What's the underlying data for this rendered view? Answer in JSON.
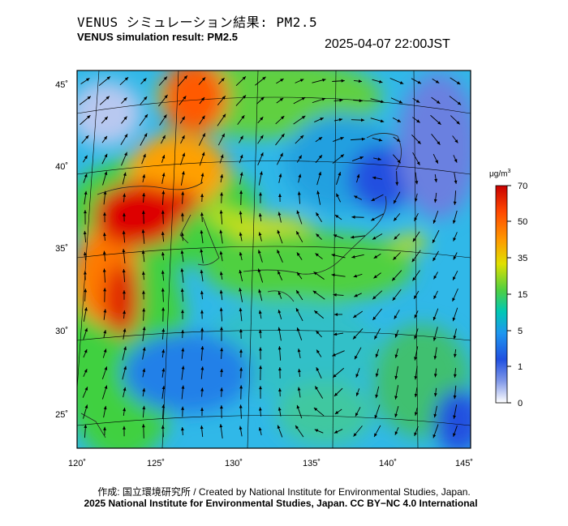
{
  "title_jp": "VENUS シミュレーション結果: PM2.5",
  "title_en": "VENUS simulation result: PM2.5",
  "timestamp": "2025-04-07 22:00JST",
  "map": {
    "lon_range": [
      120,
      145
    ],
    "lat_range": [
      23,
      46
    ],
    "lon_ticks": [
      "120˚",
      "125˚",
      "130˚",
      "135˚",
      "140˚",
      "145˚"
    ],
    "lat_ticks": [
      "45˚",
      "40˚",
      "35˚",
      "30˚",
      "25˚"
    ]
  },
  "colorbar": {
    "unit": "μg/m",
    "unit_sup": "3",
    "labels": [
      "70",
      "50",
      "35",
      "15",
      "5",
      "1",
      "0"
    ],
    "colors": [
      "#d40000",
      "#ff5a00",
      "#ffa000",
      "#d8d800",
      "#40d040",
      "#00c8c8",
      "#2090f0",
      "#2050e0",
      "#6a80e0",
      "#c8d0f0",
      "#ffffff"
    ]
  },
  "credit_line1": "作成: 国立環境研究所 / Created by National Institute for Environmental Studies, Japan.",
  "credit_line2": "2025 National Institute for Environmental Studies, Japan. CC BY−NC 4.0 International"
}
